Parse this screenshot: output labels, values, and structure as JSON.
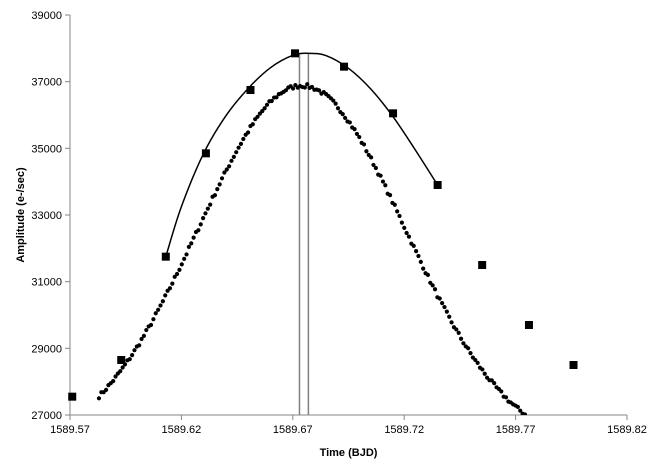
{
  "chart_data": {
    "type": "scatter",
    "title": "",
    "xlabel": "Time (BJD)",
    "ylabel": "Amplitude (e-/sec)",
    "xlim": [
      1589.57,
      1589.82
    ],
    "ylim": [
      27000,
      39000
    ],
    "xticks": [
      "1589.57",
      "1589.62",
      "1589.67",
      "1589.72",
      "1589.77",
      "1589.82"
    ],
    "yticks": [
      "27000",
      "29000",
      "31000",
      "33000",
      "35000",
      "37000",
      "39000"
    ],
    "grid": false,
    "legend": "none",
    "series": [
      {
        "kind": "dense-dots",
        "color": "#000000",
        "marker": "circle",
        "curve": {
          "peak_x": 1589.674,
          "peak_y": 36880,
          "base_y": 25950,
          "sigma": 0.0465,
          "x_start": 1589.583,
          "x_end": 1589.805,
          "n": 210,
          "scatter": 120
        }
      },
      {
        "kind": "squares",
        "color": "#000000",
        "marker": "square",
        "x": [
          1589.571,
          1589.593,
          1589.613,
          1589.631,
          1589.651,
          1589.671,
          1589.693,
          1589.715,
          1589.735,
          1589.755,
          1589.776,
          1589.796
        ],
        "y": [
          27550,
          28650,
          31750,
          34850,
          36750,
          37850,
          37450,
          36050,
          33900,
          31500,
          29700,
          28500
        ]
      },
      {
        "kind": "fit-line",
        "color": "#000000",
        "x": [
          1589.613,
          1589.62,
          1589.63,
          1589.64,
          1589.65,
          1589.66,
          1589.67,
          1589.677,
          1589.685,
          1589.695,
          1589.705,
          1589.715,
          1589.725,
          1589.735
        ],
        "y": [
          31750,
          33250,
          34850,
          35980,
          36800,
          37420,
          37790,
          37850,
          37780,
          37400,
          36780,
          35950,
          34950,
          33900
        ]
      }
    ],
    "vlines": [
      {
        "x": 1589.673,
        "color": "#808080"
      },
      {
        "x": 1589.677,
        "color": "#808080"
      }
    ]
  }
}
